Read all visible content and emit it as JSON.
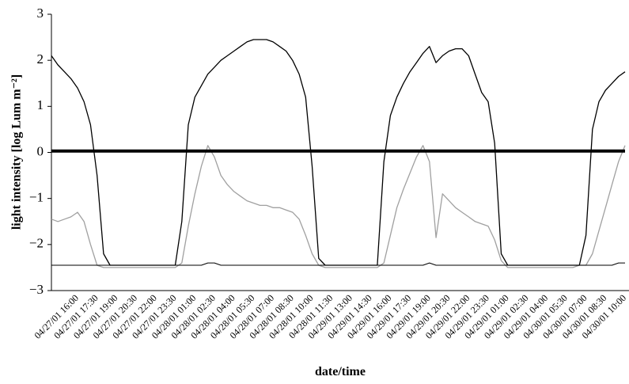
{
  "chart_data": {
    "type": "line",
    "xlabel": "date/time",
    "ylabel": "light intensity [log Lum m⁻²]",
    "categories": [
      null,
      null,
      null,
      null,
      "04/27/01 16:00",
      null,
      null,
      "04/27/01 17:30",
      null,
      null,
      "04/27/01 19:00",
      null,
      null,
      "04/27/01 20:30",
      null,
      null,
      "04/27/01 22:00",
      null,
      null,
      "04/27/01 23:30",
      null,
      null,
      "04/28/01 01:00",
      null,
      null,
      "04/28/01 02:30",
      null,
      null,
      "04/28/01 04:00",
      null,
      null,
      "04/28/01 05:30",
      null,
      null,
      "04/28/01 07:00",
      null,
      null,
      "04/28/01 08:30",
      null,
      null,
      "04/28/01 10:00",
      null,
      null,
      "04/28/01 11:30",
      null,
      null,
      "04/29/01 13:00",
      null,
      null,
      "04/29/01 14:30",
      null,
      null,
      "04/29/01 16:00",
      null,
      null,
      "04/29/01 17:30",
      null,
      null,
      "04/29/01 19:00",
      null,
      null,
      "04/29/01 20:30",
      null,
      null,
      "04/29/01 22:00",
      null,
      null,
      "04/29/01 23:30",
      null,
      null,
      "04/29/01 01:00",
      null,
      null,
      "04/29/01 02:30",
      null,
      null,
      "04/29/01 04:00",
      null,
      null,
      "04/30/01 05:30",
      null,
      null,
      "04/30/01 07:00",
      null,
      null,
      "04/30/01 08:30",
      null,
      null,
      "04/30/01 10:00"
    ],
    "series": [
      {
        "color": "#a0a0a0",
        "width": 1.3,
        "values": [
          -1.45,
          -1.5,
          -1.45,
          -1.4,
          -1.3,
          -1.5,
          -2.0,
          -2.45,
          -2.5,
          -2.5,
          -2.5,
          -2.5,
          -2.5,
          -2.5,
          -2.5,
          -2.5,
          -2.5,
          -2.5,
          -2.5,
          -2.5,
          -2.4,
          -1.6,
          -0.9,
          -0.3,
          0.15,
          -0.1,
          -0.5,
          -0.7,
          -0.85,
          -0.95,
          -1.05,
          -1.1,
          -1.15,
          -1.15,
          -1.2,
          -1.2,
          -1.25,
          -1.3,
          -1.45,
          -1.8,
          -2.2,
          -2.45,
          -2.5,
          -2.5,
          -2.5,
          -2.5,
          -2.5,
          -2.5,
          -2.5,
          -2.5,
          -2.5,
          -2.4,
          -1.8,
          -1.2,
          -0.8,
          -0.45,
          -0.1,
          0.15,
          -0.2,
          -1.85,
          -0.9,
          -1.05,
          -1.2,
          -1.3,
          -1.4,
          -1.5,
          -1.55,
          -1.6,
          -1.9,
          -2.35,
          -2.5,
          -2.5,
          -2.5,
          -2.5,
          -2.5,
          -2.5,
          -2.5,
          -2.5,
          -2.5,
          -2.5,
          -2.5,
          -2.45,
          -2.45,
          -2.2,
          -1.7,
          -1.2,
          -0.7,
          -0.2,
          0.15
        ]
      },
      {
        "color": "#000000",
        "width": 1,
        "values": [
          -2.45,
          -2.45,
          -2.45,
          -2.45,
          -2.45,
          -2.45,
          -2.45,
          -2.45,
          -2.45,
          -2.45,
          -2.45,
          -2.45,
          -2.45,
          -2.45,
          -2.45,
          -2.45,
          -2.45,
          -2.45,
          -2.45,
          -2.45,
          -2.45,
          -2.45,
          -2.45,
          -2.45,
          -2.4,
          -2.4,
          -2.45,
          -2.45,
          -2.45,
          -2.45,
          -2.45,
          -2.45,
          -2.45,
          -2.45,
          -2.45,
          -2.45,
          -2.45,
          -2.45,
          -2.45,
          -2.45,
          -2.45,
          -2.45,
          -2.45,
          -2.45,
          -2.45,
          -2.45,
          -2.45,
          -2.45,
          -2.45,
          -2.45,
          -2.45,
          -2.45,
          -2.45,
          -2.45,
          -2.45,
          -2.45,
          -2.45,
          -2.45,
          -2.4,
          -2.45,
          -2.45,
          -2.45,
          -2.45,
          -2.45,
          -2.45,
          -2.45,
          -2.45,
          -2.45,
          -2.45,
          -2.45,
          -2.45,
          -2.45,
          -2.45,
          -2.45,
          -2.45,
          -2.45,
          -2.45,
          -2.45,
          -2.45,
          -2.45,
          -2.45,
          -2.45,
          -2.45,
          -2.45,
          -2.45,
          -2.45,
          -2.45,
          -2.4,
          -2.4
        ]
      },
      {
        "color": "#000000",
        "width": 1.3,
        "values": [
          2.1,
          1.9,
          1.75,
          1.6,
          1.4,
          1.1,
          0.6,
          -0.5,
          -2.2,
          -2.45,
          -2.45,
          -2.45,
          -2.45,
          -2.45,
          -2.45,
          -2.45,
          -2.45,
          -2.45,
          -2.45,
          -2.45,
          -1.5,
          0.6,
          1.2,
          1.45,
          1.7,
          1.85,
          2.0,
          2.1,
          2.2,
          2.3,
          2.4,
          2.45,
          2.45,
          2.45,
          2.4,
          2.3,
          2.2,
          2.0,
          1.7,
          1.2,
          -0.3,
          -2.3,
          -2.45,
          -2.45,
          -2.45,
          -2.45,
          -2.45,
          -2.45,
          -2.45,
          -2.45,
          -2.45,
          -0.2,
          0.8,
          1.2,
          1.5,
          1.75,
          1.95,
          2.15,
          2.3,
          1.95,
          2.1,
          2.2,
          2.25,
          2.25,
          2.1,
          1.7,
          1.3,
          1.1,
          0.2,
          -2.2,
          -2.45,
          -2.45,
          -2.45,
          -2.45,
          -2.45,
          -2.45,
          -2.45,
          -2.45,
          -2.45,
          -2.45,
          -2.45,
          -2.45,
          -1.8,
          0.5,
          1.1,
          1.35,
          1.5,
          1.65,
          1.75
        ]
      },
      {
        "color": "#000000",
        "width": 4,
        "values": [
          0.03,
          0.03,
          0.03,
          0.03,
          0.03,
          0.03,
          0.03,
          0.03,
          0.03,
          0.03,
          0.03,
          0.03,
          0.03,
          0.03,
          0.03,
          0.03,
          0.03,
          0.03,
          0.03,
          0.03,
          0.03,
          0.03,
          0.03,
          0.03,
          0.03,
          0.03,
          0.03,
          0.03,
          0.03,
          0.03,
          0.03,
          0.03,
          0.03,
          0.03,
          0.03,
          0.03,
          0.03,
          0.03,
          0.03,
          0.03,
          0.03,
          0.03,
          0.03,
          0.03,
          0.03,
          0.03,
          0.03,
          0.03,
          0.03,
          0.03,
          0.03,
          0.03,
          0.03,
          0.03,
          0.03,
          0.03,
          0.03,
          0.03,
          0.03,
          0.03,
          0.03,
          0.03,
          0.03,
          0.03,
          0.03,
          0.03,
          0.03,
          0.03,
          0.03,
          0.03,
          0.03,
          0.03,
          0.03,
          0.03,
          0.03,
          0.03,
          0.03,
          0.03,
          0.03,
          0.03,
          0.03,
          0.03,
          0.03,
          0.03,
          0.03,
          0.03,
          0.03,
          0.03,
          0.03
        ]
      }
    ],
    "ylim": [
      -3,
      3
    ],
    "yticks": [
      {
        "value": -3,
        "label": "−3"
      },
      {
        "value": -2,
        "label": "−2"
      },
      {
        "value": -1,
        "label": "−1"
      },
      0,
      1,
      2,
      3
    ],
    "grid": false
  }
}
